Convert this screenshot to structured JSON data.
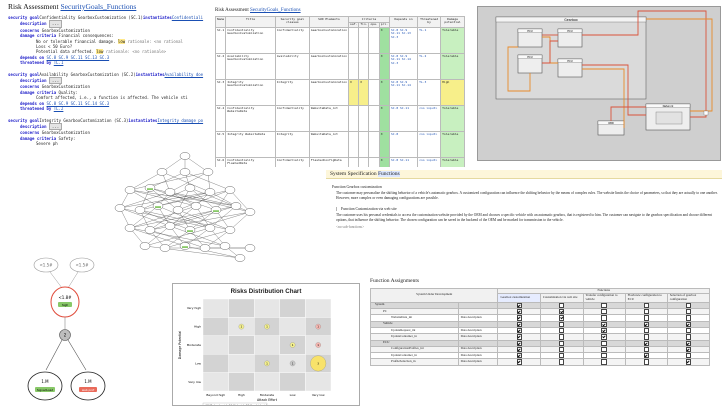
{
  "risk_panel": {
    "title_prefix": "Risk Assessment ",
    "title_link": "SecurityGoals_Functions",
    "blocks": [
      {
        "head_kw": "security goal",
        "head_name": "Confidentiality GearboxCustomization (SC.1)",
        "head_kw2": "instantiates",
        "head_ref": "Confidentiali",
        "lines": [
          {
            "label": "description",
            "value": "..."
          },
          {
            "label": "concerns",
            "value": "GearboxCustomization"
          },
          {
            "label": "damage criteria",
            "value": "Financial consequences:"
          },
          {
            "indent": 2,
            "value": "No or tolerable financial damage.",
            "tag": "low",
            "extra": "rationale: <no rational"
          },
          {
            "indent": 2,
            "value": "Loss < 50 Euro?"
          },
          {
            "indent": 2,
            "value": "Potential data affected.",
            "tag": "low",
            "extra": "rationale: <no rationale>"
          },
          {
            "label": "depends on",
            "value": "SC.8  SC.9  SC.11  SC.13  SC.3"
          },
          {
            "label": "threatened by",
            "value": "TL.1"
          }
        ]
      },
      {
        "head_kw": "security goal",
        "head_name": "Availability GearboxCustomization (SC.2)",
        "head_kw2": "instantiates",
        "head_ref": "Availability doe",
        "lines": [
          {
            "label": "description",
            "value": "..."
          },
          {
            "label": "concerns",
            "value": "GearboxCustomization"
          },
          {
            "label": "damage criteria",
            "value": "Quality:"
          },
          {
            "indent": 2,
            "value": "Comfort affected, i.e., a function is affected. The vehicle sti"
          },
          {
            "label": "depends on",
            "value": "SC.8  SC.9  SC.11  SC.14  SC.3"
          },
          {
            "label": "threatened by",
            "value": "TL.2"
          }
        ]
      },
      {
        "head_kw": "security goal",
        "head_name": "Integrity GearboxCustomization (SC.3)",
        "head_kw2": "instantiates",
        "head_ref": "Integrity damage po",
        "lines": [
          {
            "label": "description",
            "value": "..."
          },
          {
            "label": "concerns",
            "value": "GearboxCustomization"
          },
          {
            "label": "damage criteria",
            "value": "Safety:"
          },
          {
            "indent": 2,
            "value": "Severe ph"
          }
        ]
      }
    ]
  },
  "req_table": {
    "title_prefix": "Risk Assessment ",
    "title_link": "SecurityGoals_Functions",
    "headers": [
      "Name",
      "Title",
      "Security goal classes",
      "SUD Elements",
      "Criteria",
      "Depends on",
      "Threatened by",
      "Damage potential"
    ],
    "criteria_sub": [
      "saf.",
      "fin.",
      "ope.",
      "pri."
    ],
    "rows": [
      {
        "id": "SC.1",
        "title": "Confidentiality GearboxCustomization",
        "cls": "Confidentiality",
        "sud": "GearboxCustomization",
        "crit": [
          "",
          "",
          "",
          "X"
        ],
        "dep": "SC.8 SC.9 SC.11 SC.13 SC.3",
        "thr": "TL.1",
        "dmg": "Tolerable"
      },
      {
        "id": "SC.2",
        "title": "Availability GearboxCustomization",
        "cls": "Availability",
        "sud": "GearboxCustomization",
        "crit": [
          "",
          "",
          "",
          "X"
        ],
        "dep": "SC.8 SC.9 SC.11 SC.14 SC.3",
        "thr": "TL.2",
        "dmg": "Tolerable"
      },
      {
        "id": "SC.3",
        "title": "Integrity GearboxCustomization",
        "cls": "Integrity",
        "sud": "GearboxCustomization",
        "crit": [
          "X",
          "X",
          "",
          "X"
        ],
        "dep": "SC.8 SC.9 SC.11 SC.14",
        "thr": "TL.3",
        "dmg": "High"
      },
      {
        "id": "SC.4",
        "title": "Confidentiality WebsiteData",
        "cls": "Confidentiality",
        "sud": "WebsiteData_int",
        "crit": [
          "",
          "",
          "",
          "X"
        ],
        "dep": "SC.8 SC.11",
        "thr": "<no input>",
        "dmg": "Tolerable"
      },
      {
        "id": "SC.5",
        "title": "Integrity WebsiteData",
        "cls": "Integrity",
        "sud": "WebsiteData_int",
        "crit": [
          "",
          "",
          "",
          "X"
        ],
        "dep": "SC.8",
        "thr": "<no input>",
        "dmg": "Tolerable"
      },
      {
        "id": "SC.6",
        "title": "Confidentiality FlashedData",
        "cls": "Confidentiality",
        "sud": "FlashedConfigData",
        "crit": [
          "",
          "",
          "",
          "X"
        ],
        "dep": "SC.8 SC.11",
        "thr": "<no input>",
        "dmg": "Tolerable"
      }
    ]
  },
  "arch": {
    "root_label": "Gearbox",
    "blocks": [
      "ECU",
      "ECU",
      "ECU",
      "ECU",
      "OBD",
      "Network"
    ],
    "colors": {
      "bg": "#cfcfcf",
      "line_red": "#d9533b",
      "line_orange": "#e88b2a"
    }
  },
  "spec": {
    "title_prefix": "System Specification ",
    "title_link": "Functions",
    "h1": "Function Gearbox customization",
    "p1": "The customer may personalize the shifting behavior of a vehicle's automatic gearbox. A customized configuration can influence the shifting behavior by the means of complex rules. The website limits the choice of parameters, so that they are actually to one another. However, more complex or even damaging configurations are possible.",
    "h2": "Function Customization via web site",
    "p2": "The customer uses his personal credentials to access the customization website provided by the OEM and chooses a specific vehicle with an automatic gearbox, that is registered to him. The customer can navigate to the gearbox specification and choose different options, that influence the shifting behavior. The chosen configuration can be saved in the backend of the OEM and be marked for transmission to the vehicle.",
    "p3": "<no sub-functions>"
  },
  "func": {
    "title": "Function Assignments",
    "group_header": "Functions",
    "sud_header": "System Under Development",
    "columns": [
      "Gearbox customization",
      "Customization via web site",
      "Transfer configuration to vehicle",
      "Flash new configuration to ECU",
      "Selection of gearbox configuration"
    ],
    "rows": [
      {
        "name": "System",
        "type": "",
        "level": 0,
        "gray": true,
        "checks": [
          true,
          false,
          false,
          false,
          false
        ]
      },
      {
        "name": "PC",
        "type": "",
        "level": 1,
        "gray": false,
        "checks": [
          true,
          true,
          false,
          false,
          false
        ]
      },
      {
        "name": "WebsiteData_int",
        "type": "Data description",
        "level": 2,
        "gray": false,
        "checks": [
          true,
          true,
          false,
          false,
          false
        ]
      },
      {
        "name": "Vehicle",
        "type": "",
        "level": 1,
        "gray": true,
        "checks": [
          true,
          false,
          true,
          true,
          true
        ]
      },
      {
        "name": "UpdateRequest_int",
        "type": "Data description",
        "level": 2,
        "gray": false,
        "checks": [
          true,
          false,
          true,
          false,
          false
        ]
      },
      {
        "name": "UpdateContainer_in",
        "type": "Data description",
        "level": 2,
        "gray": false,
        "checks": [
          true,
          false,
          true,
          false,
          false
        ]
      },
      {
        "name": "ECU",
        "type": "",
        "level": 1,
        "gray": true,
        "checks": [
          true,
          false,
          false,
          true,
          true
        ]
      },
      {
        "name": "ConfigurationProfiles_int",
        "type": "Data description",
        "level": 2,
        "gray": false,
        "checks": [
          true,
          false,
          false,
          false,
          true
        ]
      },
      {
        "name": "UpdateContainer_in",
        "type": "Data description",
        "level": 2,
        "gray": false,
        "checks": [
          true,
          false,
          false,
          true,
          false
        ]
      },
      {
        "name": "ProfileSelection_in",
        "type": "Data description",
        "level": 2,
        "gray": false,
        "checks": [
          true,
          false,
          false,
          false,
          true
        ]
      }
    ]
  },
  "tree": {
    "top": [
      "<1.5#",
      "<1.5#"
    ],
    "root": "<1.8#",
    "root_tag": "high",
    "gate": "2",
    "leaves": [
      {
        "label": "1.M",
        "tag": "SignedLoad"
      },
      {
        "label": "1.M",
        "tag": "web prof"
      }
    ]
  },
  "chart_data": {
    "type": "scatter",
    "title": "Risks Distribution Chart",
    "xlabel": "Attack Effort",
    "ylabel": "Damage Potential",
    "x_categories": [
      "Beyond high",
      "High",
      "Moderate",
      "Low",
      "Very low"
    ],
    "y_categories": [
      "Very high",
      "High",
      "Moderate",
      "Low",
      "Very low"
    ],
    "points": [
      {
        "x": "High",
        "y": "High",
        "n": 1,
        "color": "#f3ef8e"
      },
      {
        "x": "Moderate",
        "y": "High",
        "n": 1,
        "color": "#f3ef8e"
      },
      {
        "x": "Very low",
        "y": "High",
        "n": 1,
        "color": "#f5b6b0"
      },
      {
        "x": "Very low",
        "y": "Moderate",
        "n": 1,
        "color": "#f5b6b0"
      },
      {
        "x": "Very low",
        "y": "Low",
        "n": 3,
        "color": "#f8e26a"
      },
      {
        "x": "Low",
        "y": "Moderate",
        "n": 1,
        "color": "#f3ef8e"
      },
      {
        "x": "Moderate",
        "y": "Low",
        "n": 1,
        "color": "#f3ef8e"
      },
      {
        "x": "Low",
        "y": "Low",
        "n": 1,
        "color": "#c9c9c9"
      }
    ],
    "legend_text": "#3 Moderate risk  #1 High risk  #3 Very high risk"
  }
}
